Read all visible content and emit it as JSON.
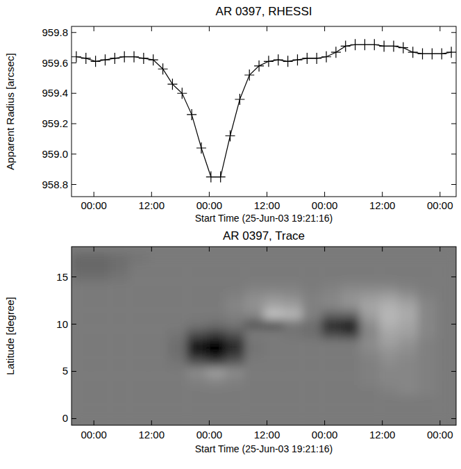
{
  "chart_data": [
    {
      "type": "line",
      "title": "AR 0397, RHESSI",
      "x_label": "Start Time (25-Jun-03 19:21:16)",
      "y_label": "Apparent Radius [arcsec]",
      "x": [
        1,
        3,
        5,
        7,
        9,
        11,
        13,
        15,
        17,
        19,
        21,
        23,
        25,
        27,
        29,
        31,
        33,
        35,
        37,
        39,
        41,
        43,
        45,
        47,
        49,
        51,
        53,
        55,
        57,
        59,
        61,
        63,
        65,
        67,
        69,
        71,
        73,
        75,
        77,
        79
      ],
      "series": [
        {
          "color": "#000000",
          "marker": "cross",
          "line_style": "solid",
          "values": [
            959.64,
            959.63,
            959.61,
            959.62,
            959.63,
            959.64,
            959.64,
            959.63,
            959.62,
            959.56,
            959.46,
            959.4,
            959.26,
            959.04,
            958.85,
            958.85,
            959.12,
            959.36,
            959.52,
            959.58,
            959.61,
            959.62,
            959.61,
            959.62,
            959.63,
            959.63,
            959.64,
            959.67,
            959.71,
            959.72,
            959.72,
            959.72,
            959.71,
            959.71,
            959.7,
            959.67,
            959.66,
            959.66,
            959.66,
            959.67
          ]
        }
      ],
      "xlim": [
        0,
        80
      ],
      "xticks": [
        {
          "value": 4.65,
          "label": "00:00"
        },
        {
          "value": 16.65,
          "label": "12:00"
        },
        {
          "value": 28.65,
          "label": "00:00"
        },
        {
          "value": 40.65,
          "label": "12:00"
        },
        {
          "value": 52.65,
          "label": "00:00"
        },
        {
          "value": 64.65,
          "label": "12:00"
        },
        {
          "value": 76.65,
          "label": "00:00"
        }
      ],
      "ylim": [
        958.72,
        959.84
      ],
      "yticks": [
        958.8,
        {
          "value": 959,
          "label": "959.0"
        },
        959.2,
        959.4,
        959.6,
        959.8
      ]
    },
    {
      "type": "heatmap",
      "title": "AR 0397, Trace",
      "x_label": "Start Time (25-Jun-03 19:21:16)",
      "y_label": "Latitude [degree]",
      "x": [
        2,
        6,
        10,
        14,
        18,
        22,
        26,
        30,
        34,
        38,
        42,
        46,
        50,
        54,
        58,
        62,
        66,
        70,
        74,
        78
      ],
      "y": [
        0,
        1,
        2,
        3,
        4,
        5,
        6,
        7,
        8,
        9,
        10,
        11,
        12,
        13,
        14,
        15,
        16,
        17
      ],
      "z": [
        [
          0,
          0,
          0,
          0,
          0,
          0,
          0,
          0,
          0,
          0,
          0,
          0,
          0,
          0,
          0,
          0,
          0,
          0,
          0,
          0
        ],
        [
          0,
          0,
          0,
          0,
          0,
          0,
          0,
          0,
          0,
          0,
          0,
          0,
          0,
          0,
          0,
          0,
          0,
          0,
          0,
          0
        ],
        [
          0,
          0,
          0,
          0,
          0,
          0,
          0,
          0,
          0,
          0,
          0,
          0,
          0,
          0,
          0,
          0,
          0,
          0,
          0,
          0
        ],
        [
          0,
          0,
          0,
          0,
          0,
          0,
          0,
          0,
          0,
          0,
          0,
          0,
          0,
          0,
          0,
          0,
          0.05,
          0.1,
          0.05,
          0
        ],
        [
          0,
          0,
          0,
          0,
          0,
          0,
          0.05,
          0.1,
          0.05,
          0,
          0,
          0,
          0,
          0,
          0,
          0.05,
          0.1,
          0.1,
          0.05,
          0
        ],
        [
          0,
          0,
          0,
          0,
          0,
          0,
          0.15,
          0.3,
          0.15,
          0,
          0,
          0,
          0,
          0,
          0,
          0.05,
          0.1,
          0.1,
          0.05,
          0
        ],
        [
          0,
          0,
          0,
          0,
          0,
          -0.05,
          -0.3,
          -0.45,
          -0.25,
          0,
          0,
          0,
          0,
          0,
          0,
          0.05,
          0.15,
          0.1,
          0.05,
          0
        ],
        [
          0,
          0,
          0,
          0,
          0,
          -0.1,
          -0.75,
          -1,
          -0.6,
          -0.05,
          0,
          0,
          0,
          0,
          0,
          0.1,
          0.2,
          0.15,
          0.05,
          0
        ],
        [
          0,
          0,
          0,
          0,
          0,
          -0.1,
          -0.8,
          -1,
          -0.65,
          -0.05,
          0,
          0,
          0,
          0,
          0,
          0.15,
          0.3,
          0.2,
          0.05,
          0
        ],
        [
          0,
          0,
          0,
          0,
          0,
          -0.05,
          -0.35,
          -0.5,
          -0.3,
          0,
          0,
          -0.05,
          -0.1,
          -0.4,
          -0.5,
          0.1,
          0.35,
          0.3,
          0.1,
          0
        ],
        [
          0,
          0,
          0,
          0,
          0,
          0,
          -0.05,
          -0.1,
          -0.05,
          -0.3,
          -0.35,
          -0.05,
          -0.1,
          -0.7,
          -0.8,
          0.15,
          0.45,
          0.35,
          0.1,
          0
        ],
        [
          0,
          0,
          0,
          0,
          0,
          0,
          0,
          0,
          0.05,
          0.1,
          0.6,
          0.5,
          0.05,
          -0.2,
          -0.2,
          0.3,
          0.5,
          0.4,
          0.1,
          0
        ],
        [
          0,
          0,
          0,
          0,
          0,
          0,
          0,
          0,
          0.1,
          0.2,
          0.35,
          0.3,
          0.05,
          0.1,
          0.2,
          0.35,
          0.45,
          0.35,
          0.1,
          0
        ],
        [
          0,
          0,
          0,
          0,
          0,
          0,
          0,
          0,
          0.05,
          0.15,
          0.2,
          0.15,
          0.05,
          0.1,
          0.2,
          0.25,
          0.3,
          0.2,
          0.05,
          0
        ],
        [
          0,
          0,
          0,
          0,
          0,
          0,
          0,
          0,
          0,
          0.05,
          0.05,
          0.05,
          0,
          0.05,
          0.1,
          0.1,
          0.1,
          0.05,
          0,
          0
        ],
        [
          -0.1,
          -0.1,
          -0.05,
          0,
          0,
          0,
          0,
          0,
          0,
          0,
          0,
          0,
          0,
          0,
          0,
          0,
          0,
          0,
          0,
          0
        ],
        [
          -0.15,
          -0.15,
          -0.1,
          0,
          0,
          0,
          0,
          0,
          0,
          0,
          0,
          0,
          0,
          0,
          0,
          0,
          0,
          0,
          0,
          0
        ],
        [
          -0.15,
          -0.15,
          -0.1,
          -0.05,
          0,
          0,
          0,
          0,
          0,
          0,
          0,
          0,
          0,
          0,
          0,
          0,
          0,
          0,
          0,
          0
        ]
      ],
      "zlim": [
        -1,
        1
      ],
      "xlim": [
        0,
        80
      ],
      "xticks": [
        {
          "value": 4.65,
          "label": "00:00"
        },
        {
          "value": 16.65,
          "label": "12:00"
        },
        {
          "value": 28.65,
          "label": "00:00"
        },
        {
          "value": 40.65,
          "label": "12:00"
        },
        {
          "value": 52.65,
          "label": "00:00"
        },
        {
          "value": 64.65,
          "label": "12:00"
        },
        {
          "value": 76.65,
          "label": "00:00"
        }
      ],
      "ylim": [
        -0.7,
        18.2
      ],
      "yticks": [
        0,
        5,
        10,
        15
      ]
    }
  ]
}
